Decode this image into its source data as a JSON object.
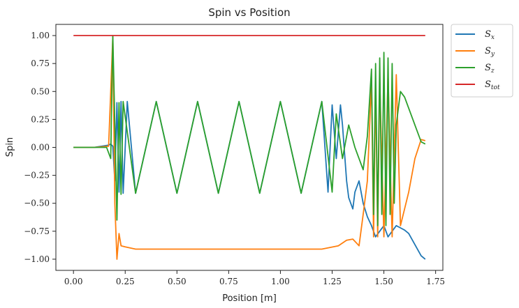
{
  "chart_data": {
    "type": "line",
    "title": "Spin vs Position",
    "xlabel": "Position [m]",
    "ylabel": "Spin",
    "xlim": [
      -0.085,
      1.785
    ],
    "ylim": [
      -1.1,
      1.1
    ],
    "xticks": [
      0.0,
      0.25,
      0.5,
      0.75,
      1.0,
      1.25,
      1.5,
      1.75
    ],
    "xtick_labels": [
      "0.00",
      "0.25",
      "0.50",
      "0.75",
      "1.00",
      "1.25",
      "1.50",
      "1.75"
    ],
    "yticks": [
      1.0,
      0.75,
      0.5,
      0.25,
      0.0,
      -0.25,
      -0.5,
      -0.75,
      -1.0
    ],
    "ytick_labels": [
      "1.00",
      "0.75",
      "0.50",
      "0.25",
      "0.00",
      "−0.25",
      "−0.50",
      "−0.75",
      "−1.00"
    ],
    "grid": false,
    "legend_position": "outside-right-top",
    "series": [
      {
        "name": "S",
        "subscript": "x",
        "color": "#1f77b4",
        "x": [
          0.0,
          0.1,
          0.17,
          0.18,
          0.19,
          0.2,
          0.21,
          0.22,
          0.23,
          0.24,
          0.26,
          0.3,
          0.4,
          0.5,
          0.6,
          0.7,
          0.8,
          0.9,
          1.0,
          1.1,
          1.2,
          1.23,
          1.25,
          1.27,
          1.29,
          1.3,
          1.32,
          1.33,
          1.35,
          1.36,
          1.38,
          1.4,
          1.42,
          1.44,
          1.46,
          1.48,
          1.5,
          1.52,
          1.54,
          1.56,
          1.58,
          1.6,
          1.62,
          1.65,
          1.68,
          1.7
        ],
        "y": [
          0.0,
          0.0,
          0.02,
          0.03,
          0.01,
          -0.3,
          0.4,
          -0.4,
          0.41,
          -0.41,
          0.41,
          -0.41,
          0.41,
          -0.41,
          0.41,
          -0.41,
          0.41,
          -0.41,
          0.41,
          -0.41,
          0.41,
          -0.4,
          0.38,
          -0.1,
          0.38,
          0.2,
          -0.3,
          -0.45,
          -0.55,
          -0.4,
          -0.3,
          -0.5,
          -0.62,
          -0.7,
          -0.8,
          -0.75,
          -0.7,
          -0.8,
          -0.75,
          -0.7,
          -0.72,
          -0.74,
          -0.77,
          -0.87,
          -0.97,
          -1.0
        ]
      },
      {
        "name": "S",
        "subscript": "y",
        "color": "#ff7f0e",
        "x": [
          0.0,
          0.1,
          0.17,
          0.18,
          0.19,
          0.2,
          0.21,
          0.22,
          0.23,
          0.25,
          0.3,
          0.5,
          0.8,
          1.0,
          1.2,
          1.28,
          1.32,
          1.35,
          1.38,
          1.4,
          1.42,
          1.44,
          1.45,
          1.46,
          1.47,
          1.48,
          1.5,
          1.52,
          1.54,
          1.56,
          1.58,
          1.6,
          1.62,
          1.65,
          1.68,
          1.7
        ],
        "y": [
          0.0,
          0.0,
          0.01,
          0.5,
          0.99,
          -0.5,
          -1.0,
          -0.77,
          -0.88,
          -0.89,
          -0.91,
          -0.91,
          -0.91,
          -0.91,
          -0.91,
          -0.88,
          -0.83,
          -0.82,
          -0.88,
          -0.6,
          -0.3,
          0.6,
          -0.8,
          0.55,
          -0.8,
          0.6,
          -0.8,
          0.65,
          -0.8,
          0.65,
          -0.7,
          -0.55,
          -0.4,
          -0.1,
          0.07,
          0.06
        ]
      },
      {
        "name": "S",
        "subscript": "z",
        "color": "#2ca02c",
        "x": [
          0.0,
          0.1,
          0.16,
          0.18,
          0.19,
          0.2,
          0.21,
          0.22,
          0.23,
          0.24,
          0.3,
          0.4,
          0.5,
          0.6,
          0.7,
          0.8,
          0.9,
          1.0,
          1.1,
          1.2,
          1.25,
          1.27,
          1.3,
          1.33,
          1.36,
          1.4,
          1.42,
          1.44,
          1.45,
          1.46,
          1.47,
          1.48,
          1.49,
          1.5,
          1.51,
          1.52,
          1.53,
          1.54,
          1.55,
          1.56,
          1.58,
          1.6,
          1.62,
          1.65,
          1.68,
          1.7
        ],
        "y": [
          0.0,
          0.0,
          0.0,
          -0.1,
          1.0,
          0.2,
          -0.65,
          0.4,
          -0.42,
          0.41,
          -0.41,
          0.41,
          -0.41,
          0.41,
          -0.41,
          0.41,
          -0.41,
          0.41,
          -0.41,
          0.41,
          -0.4,
          0.3,
          -0.1,
          0.2,
          0.0,
          -0.2,
          0.1,
          0.7,
          -0.6,
          0.75,
          -0.7,
          0.8,
          -0.6,
          0.85,
          -0.7,
          0.8,
          -0.6,
          0.75,
          -0.5,
          0.2,
          0.5,
          0.45,
          0.35,
          0.2,
          0.05,
          0.03
        ]
      },
      {
        "name": "S",
        "subscript": "tot",
        "color": "#d62728",
        "x": [
          0.0,
          1.7
        ],
        "y": [
          1.0,
          1.0
        ]
      }
    ]
  }
}
